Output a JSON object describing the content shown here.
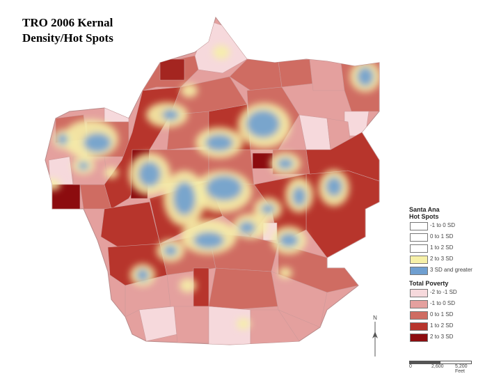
{
  "title": {
    "line1": "TRO 2006 Kernal",
    "line2": "Density/Hot Spots"
  },
  "legend": {
    "hotspots_title_line1": "Santa Ana",
    "hotspots_title_line2": "Hot Spots",
    "hotspots": [
      {
        "label": "-1 to 0 SD",
        "color": "#ffffff"
      },
      {
        "label": "0 to 1 SD",
        "color": "#ffffff"
      },
      {
        "label": "1 to 2 SD",
        "color": "#ffffff"
      },
      {
        "label": "2 to 3 SD",
        "color": "#f6f0a8"
      },
      {
        "label": "3 SD and greater",
        "color": "#6f9fd0"
      }
    ],
    "poverty_title": "Total Poverty",
    "poverty": [
      {
        "label": "-2 to -1 SD",
        "color": "#f6d9dc"
      },
      {
        "label": "-1 to 0 SD",
        "color": "#e4a09e"
      },
      {
        "label": "0 to 1 SD",
        "color": "#cf6c62"
      },
      {
        "label": "1 to 2 SD",
        "color": "#b7352c"
      },
      {
        "label": "2 to 3 SD",
        "color": "#8c0c0f"
      }
    ]
  },
  "north_arrow": {
    "letter": "N"
  },
  "scale": {
    "start": "0",
    "mid": "2,600",
    "end": "5,200 Feet"
  }
}
